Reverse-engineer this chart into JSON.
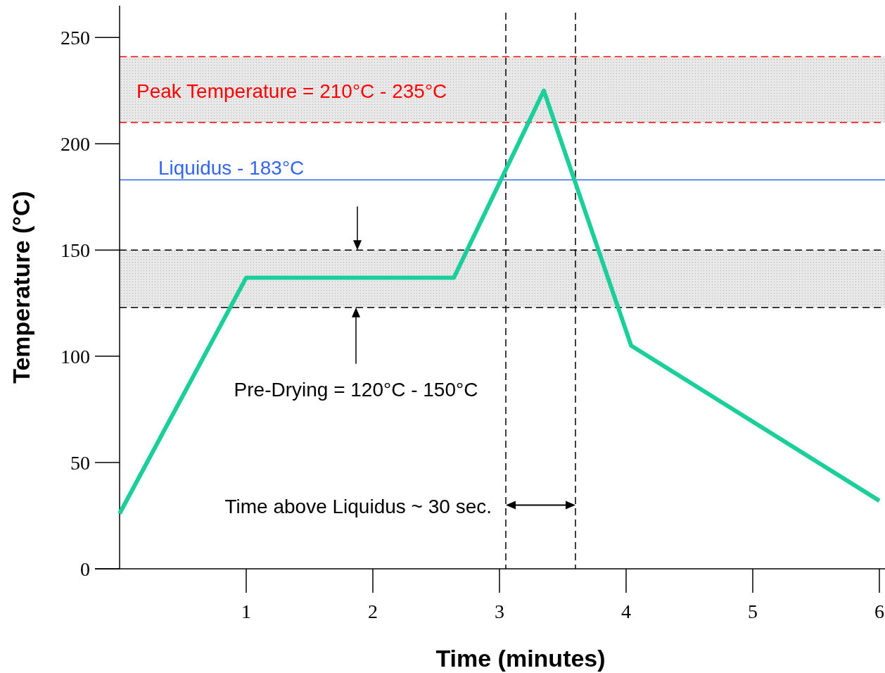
{
  "chart_data": {
    "type": "line",
    "xlabel": "Time (minutes)",
    "ylabel": "Temperature (°C)",
    "xlim": [
      0,
      6
    ],
    "xticks": [
      1,
      2,
      3,
      4,
      5,
      6
    ],
    "ylim": [
      0,
      265
    ],
    "yticks": [
      0,
      50,
      100,
      150,
      200,
      250
    ],
    "series": [
      {
        "color": "#1ccf9a",
        "x": [
          0,
          1,
          2.64,
          3.35,
          4.04,
          6
        ],
        "values": [
          26,
          137,
          137,
          225,
          105,
          32
        ]
      }
    ],
    "ref_lines": [
      {
        "axis": "y",
        "value": 183,
        "label": "Liquidus - 183°C",
        "color": "#3366ee",
        "line_style": "solid"
      },
      {
        "axis": "y",
        "value": 241,
        "color": "#ff0000",
        "line_style": "dashed"
      },
      {
        "axis": "y",
        "value": 210,
        "label": "Peak Temperature = 210°C - 235°C",
        "color": "#ff0000",
        "line_style": "dashed"
      },
      {
        "axis": "y",
        "value": 150,
        "color": "#000000",
        "line_style": "dashed"
      },
      {
        "axis": "y",
        "value": 123,
        "color": "#000000",
        "line_style": "dashed"
      },
      {
        "axis": "x",
        "value": 3.05,
        "color": "#000000",
        "line_style": "dashed"
      },
      {
        "axis": "x",
        "value": 3.6,
        "color": "#000000",
        "line_style": "dashed"
      }
    ],
    "bands": [
      {
        "axis": "y",
        "from": 210,
        "to": 241,
        "color": "#e8e8e8"
      },
      {
        "axis": "y",
        "from": 123,
        "to": 150,
        "color": "#e8e8e8"
      }
    ],
    "annotations": [
      "Pre-Drying = 120°C - 150°C",
      {
        "text": "Time above Liquidus ~ 30 sec.",
        "x": 3.05,
        "y": 30
      }
    ],
    "line_style": "solid",
    "marker": "none"
  }
}
